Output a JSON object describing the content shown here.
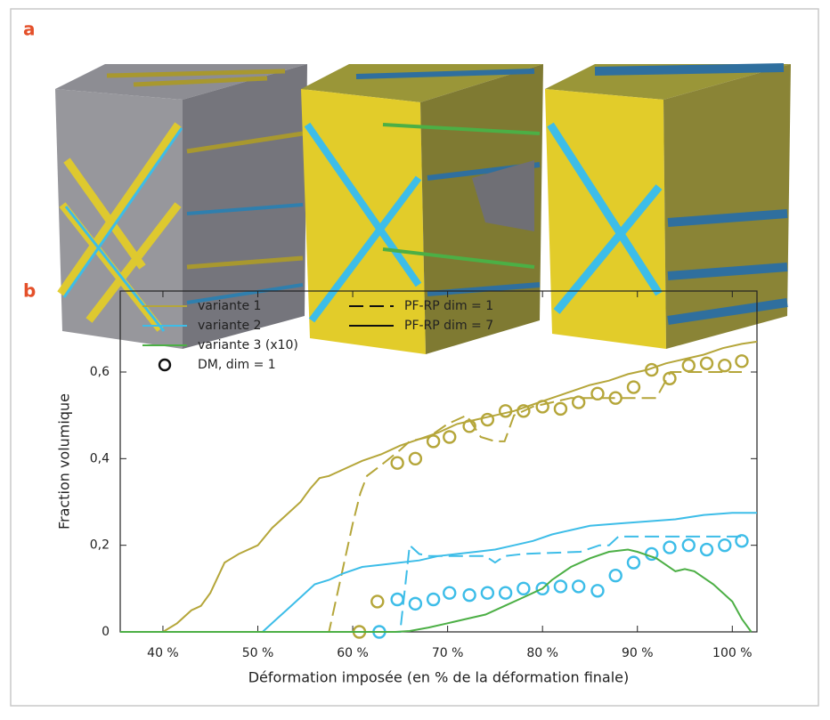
{
  "panel_labels": [
    "a",
    "b"
  ],
  "chart_data": {
    "type": "line",
    "xlabel": "Déformation imposée (en % de la déformation finale)",
    "ylabel": "Fraction volumique",
    "xlim": [
      35.5,
      102.6
    ],
    "ylim": [
      0,
      0.787
    ],
    "xticks": [
      {
        "value": 40,
        "label": "40 %"
      },
      {
        "value": 50,
        "label": "50 %"
      },
      {
        "value": 60,
        "label": "60 %"
      },
      {
        "value": 70,
        "label": "70 %"
      },
      {
        "value": 80,
        "label": "80 %"
      },
      {
        "value": 90,
        "label": "90 %"
      },
      {
        "value": 100,
        "label": "100 %"
      }
    ],
    "yticks": [
      0,
      {
        "value": 0.2,
        "label": "0,2"
      },
      {
        "value": 0.4,
        "label": "0,4"
      },
      {
        "value": 0.6,
        "label": "0,6"
      }
    ],
    "styles": [
      {
        "name": "PF-RP dim = 1",
        "style": "dashed"
      },
      {
        "name": "PF-RP dim = 7",
        "style": "solid"
      },
      {
        "name": "DM, dim = 1",
        "style": "circle"
      }
    ],
    "series": [
      {
        "name": "variante 1",
        "color": "#b5a63a",
        "curves": [
          {
            "style": "solid",
            "x": [
              35.5,
              40,
              41.5,
              43,
              44,
              45,
              46.5,
              48,
              50,
              51.5,
              53,
              54.5,
              55.5,
              56.5,
              57.5,
              59,
              61,
              63,
              65,
              67,
              69,
              71,
              73,
              75,
              77,
              79,
              81,
              83,
              85,
              87,
              89,
              91,
              93,
              95,
              97,
              99,
              101,
              102.6
            ],
            "values": [
              0,
              0,
              0.02,
              0.05,
              0.06,
              0.09,
              0.16,
              0.18,
              0.2,
              0.24,
              0.27,
              0.3,
              0.33,
              0.355,
              0.36,
              0.375,
              0.395,
              0.41,
              0.43,
              0.445,
              0.46,
              0.48,
              0.49,
              0.5,
              0.51,
              0.525,
              0.54,
              0.555,
              0.57,
              0.58,
              0.595,
              0.605,
              0.62,
              0.63,
              0.64,
              0.655,
              0.665,
              0.67
            ]
          },
          {
            "style": "dashed",
            "x": [
              35.5,
              57.5,
              59,
              60,
              60.8,
              61.5,
              63,
              65,
              66,
              68,
              70,
              72,
              73.5,
              75,
              76,
              77,
              79,
              81,
              83,
              85,
              90,
              92,
              93.5,
              101
            ],
            "values": [
              0,
              0,
              0.15,
              0.25,
              0.32,
              0.36,
              0.385,
              0.42,
              0.44,
              0.45,
              0.48,
              0.5,
              0.45,
              0.44,
              0.44,
              0.5,
              0.52,
              0.53,
              0.54,
              0.54,
              0.54,
              0.54,
              0.6,
              0.6
            ]
          },
          {
            "style": "circle",
            "x": [
              60.7,
              62.6,
              64.7,
              66.6,
              68.5,
              70.2,
              72.3,
              74.2,
              76.1,
              78.0,
              80.0,
              81.9,
              83.8,
              85.8,
              87.7,
              89.6,
              91.5,
              93.4,
              95.4,
              97.3,
              99.2,
              101.0
            ],
            "values": [
              0,
              0.07,
              0.39,
              0.4,
              0.44,
              0.45,
              0.475,
              0.49,
              0.51,
              0.51,
              0.52,
              0.515,
              0.53,
              0.55,
              0.54,
              0.565,
              0.605,
              0.585,
              0.615,
              0.62,
              0.615,
              0.625
            ]
          }
        ]
      },
      {
        "name": "variante 2",
        "color": "#3dbde8",
        "curves": [
          {
            "style": "solid",
            "x": [
              35.5,
              50.5,
              52,
              53,
              54.5,
              56,
              57.5,
              59,
              61,
              63,
              65,
              67,
              69,
              71,
              73,
              75,
              77,
              79,
              81,
              83,
              85,
              88,
              91,
              94,
              97,
              100,
              102.6
            ],
            "values": [
              0,
              0,
              0.03,
              0.05,
              0.08,
              0.11,
              0.12,
              0.135,
              0.15,
              0.155,
              0.16,
              0.165,
              0.175,
              0.18,
              0.185,
              0.19,
              0.2,
              0.21,
              0.225,
              0.235,
              0.245,
              0.25,
              0.255,
              0.26,
              0.27,
              0.275,
              0.275
            ]
          },
          {
            "style": "dashed",
            "x": [
              35.5,
              65,
              65.5,
              66,
              67,
              68,
              72,
              74,
              75,
              76,
              78,
              84,
              86,
              87,
              88,
              101
            ],
            "values": [
              0,
              0,
              0.1,
              0.2,
              0.18,
              0.175,
              0.175,
              0.175,
              0.16,
              0.175,
              0.18,
              0.185,
              0.2,
              0.2,
              0.22,
              0.22
            ]
          },
          {
            "style": "circle",
            "x": [
              62.8,
              64.7,
              66.6,
              68.5,
              70.2,
              72.3,
              74.2,
              76.1,
              78.0,
              80.0,
              81.9,
              83.8,
              85.8,
              87.7,
              89.6,
              91.5,
              93.4,
              95.4,
              97.3,
              99.2,
              101.0
            ],
            "values": [
              0,
              0.075,
              0.065,
              0.075,
              0.09,
              0.085,
              0.09,
              0.09,
              0.1,
              0.1,
              0.105,
              0.105,
              0.095,
              0.13,
              0.16,
              0.18,
              0.195,
              0.2,
              0.19,
              0.2,
              0.21
            ]
          }
        ]
      },
      {
        "name": "variante 3 (x10)",
        "color": "#4caf45",
        "curves": [
          {
            "style": "solid",
            "x": [
              35.5,
              64.5,
              66,
              68,
              70,
              72,
              74,
              76,
              78,
              80,
              81,
              83,
              85,
              87,
              89,
              90,
              92,
              94,
              95,
              96,
              98,
              100,
              101,
              102
            ],
            "values": [
              0,
              0,
              0.002,
              0.01,
              0.02,
              0.03,
              0.04,
              0.06,
              0.08,
              0.1,
              0.12,
              0.15,
              0.17,
              0.185,
              0.19,
              0.185,
              0.17,
              0.14,
              0.145,
              0.14,
              0.11,
              0.07,
              0.03,
              0
            ]
          }
        ]
      }
    ]
  }
}
